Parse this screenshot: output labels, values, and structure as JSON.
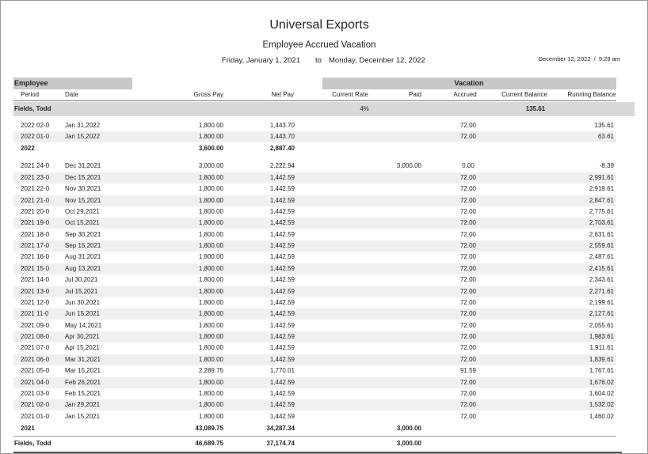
{
  "header": {
    "title": "Universal Exports",
    "subtitle": "Employee Accrued Vacation",
    "date_from": "Friday, January 1, 2021",
    "date_sep": "to",
    "date_to": "Monday, December 12, 2022",
    "printed": "December 12, 2022  /  9:28 am"
  },
  "groups": {
    "employee": "Employee",
    "vacation": "Vacation"
  },
  "columns": {
    "period": "Period",
    "date": "Date",
    "gross": "Gross Pay",
    "net": "Net Pay",
    "rate": "Current Rate",
    "paid": "Paid",
    "accrued": "Accrued",
    "current_balance": "Current Balance",
    "running": "Running Balance"
  },
  "employee": {
    "name": "Fields, Todd",
    "rate": "4%",
    "current_balance": "135.61"
  },
  "sections": [
    {
      "rows": [
        {
          "period": "2022 02-0",
          "date": "Jan 31,2022",
          "gross": "1,800.00",
          "net": "1,443.70",
          "accrued": "72.00",
          "running": "135.61"
        },
        {
          "period": "2022 01-0",
          "date": "Jan 15,2022",
          "gross": "1,800.00",
          "net": "1,443.70",
          "accrued": "72.00",
          "running": "63.61"
        }
      ],
      "subtotal": {
        "label": "2022",
        "gross": "3,600.00",
        "net": "2,887.40"
      }
    },
    {
      "rows": [
        {
          "period": "2021 24-0",
          "date": "Dec 31,2021",
          "gross": "3,000.00",
          "net": "2,222.94",
          "paid": "3,000.00",
          "accrued": "0.00",
          "running": "-8.39"
        },
        {
          "period": "2021 23-0",
          "date": "Dec 15,2021",
          "gross": "1,800.00",
          "net": "1,442.59",
          "accrued": "72.00",
          "running": "2,991.61"
        },
        {
          "period": "2021 22-0",
          "date": "Nov 30,2021",
          "gross": "1,800.00",
          "net": "1,442.59",
          "accrued": "72.00",
          "running": "2,919.61"
        },
        {
          "period": "2021 21-0",
          "date": "Nov 15,2021",
          "gross": "1,800.00",
          "net": "1,442.59",
          "accrued": "72.00",
          "running": "2,847.61"
        },
        {
          "period": "2021 20-0",
          "date": "Oct 29,2021",
          "gross": "1,800.00",
          "net": "1,442.59",
          "accrued": "72.00",
          "running": "2,775.61"
        },
        {
          "period": "2021 19-0",
          "date": "Oct 15,2021",
          "gross": "1,800.00",
          "net": "1,442.59",
          "accrued": "72.00",
          "running": "2,703.61"
        },
        {
          "period": "2021 18-0",
          "date": "Sep 30,2021",
          "gross": "1,800.00",
          "net": "1,442.59",
          "accrued": "72.00",
          "running": "2,631.61"
        },
        {
          "period": "2021 17-0",
          "date": "Sep 15,2021",
          "gross": "1,800.00",
          "net": "1,442.59",
          "accrued": "72.00",
          "running": "2,559.61"
        },
        {
          "period": "2021 16-0",
          "date": "Aug 31,2021",
          "gross": "1,800.00",
          "net": "1,442.59",
          "accrued": "72.00",
          "running": "2,487.61"
        },
        {
          "period": "2021 15-0",
          "date": "Aug 13,2021",
          "gross": "1,800.00",
          "net": "1,442.59",
          "accrued": "72.00",
          "running": "2,415.61"
        },
        {
          "period": "2021 14-0",
          "date": "Jul 30,2021",
          "gross": "1,800.00",
          "net": "1,442.59",
          "accrued": "72.00",
          "running": "2,343.61"
        },
        {
          "period": "2021 13-0",
          "date": "Jul 15,2021",
          "gross": "1,800.00",
          "net": "1,442.59",
          "accrued": "72.00",
          "running": "2,271.61"
        },
        {
          "period": "2021 12-0",
          "date": "Jun 30,2021",
          "gross": "1,800.00",
          "net": "1,442.59",
          "accrued": "72.00",
          "running": "2,199.61"
        },
        {
          "period": "2021 11-0",
          "date": "Jun 15,2021",
          "gross": "1,800.00",
          "net": "1,442.59",
          "accrued": "72.00",
          "running": "2,127.61"
        },
        {
          "period": "2021 09-0",
          "date": "May 14,2021",
          "gross": "1,800.00",
          "net": "1,442.59",
          "accrued": "72.00",
          "running": "2,055.61"
        },
        {
          "period": "2021 08-0",
          "date": "Apr 30,2021",
          "gross": "1,800.00",
          "net": "1,442.59",
          "accrued": "72.00",
          "running": "1,983.61"
        },
        {
          "period": "2021 07-0",
          "date": "Apr 15,2021",
          "gross": "1,800.00",
          "net": "1,442.59",
          "accrued": "72.00",
          "running": "1,911.61"
        },
        {
          "period": "2021 06-0",
          "date": "Mar 31,2021",
          "gross": "1,800.00",
          "net": "1,442.59",
          "accrued": "72.00",
          "running": "1,839.61"
        },
        {
          "period": "2021 05-0",
          "date": "Mar 15,2021",
          "gross": "2,289.75",
          "net": "1,770.01",
          "accrued": "91.59",
          "running": "1,767.61"
        },
        {
          "period": "2021 04-0",
          "date": "Feb 26,2021",
          "gross": "1,800.00",
          "net": "1,442.59",
          "accrued": "72.00",
          "running": "1,676.02"
        },
        {
          "period": "2021 03-0",
          "date": "Feb 15,2021",
          "gross": "1,800.00",
          "net": "1,442.59",
          "accrued": "72.00",
          "running": "1,604.02"
        },
        {
          "period": "2021 02-0",
          "date": "Jan 29,2021",
          "gross": "1,800.00",
          "net": "1,442.59",
          "accrued": "72.00",
          "running": "1,532.02"
        },
        {
          "period": "2021 01-0",
          "date": "Jan 15,2021",
          "gross": "1,800.00",
          "net": "1,442.59",
          "accrued": "72.00",
          "running": "1,460.02"
        }
      ],
      "subtotal": {
        "label": "2021",
        "gross": "43,089.75",
        "net": "34,287.34",
        "paid": "3,000.00"
      }
    }
  ],
  "total": {
    "label": "Fields, Todd",
    "gross": "46,689.75",
    "net": "37,174.74",
    "paid": "3,000.00"
  }
}
